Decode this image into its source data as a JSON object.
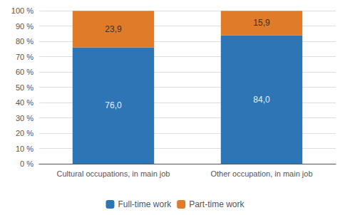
{
  "chart_data": {
    "type": "bar",
    "stacked": true,
    "categories": [
      "Cultural occupations, in main job",
      "Other occupation, in main job"
    ],
    "series": [
      {
        "name": "Full-time work",
        "color": "#2E75B6",
        "values": [
          76.0,
          84.0
        ],
        "value_labels": [
          "76,0",
          "84,0"
        ]
      },
      {
        "name": "Part-time work",
        "color": "#E07B2A",
        "values": [
          23.9,
          15.9
        ],
        "value_labels": [
          "23,9",
          "15,9"
        ]
      }
    ],
    "ylim": [
      0,
      100
    ],
    "yticks": [
      {
        "value": 0,
        "label": "0 %"
      },
      {
        "value": 10,
        "label": "10 %"
      },
      {
        "value": 20,
        "label": "20 %"
      },
      {
        "value": 30,
        "label": "30 %"
      },
      {
        "value": 40,
        "label": "40 %"
      },
      {
        "value": 50,
        "label": "50 %"
      },
      {
        "value": 60,
        "label": "60 %"
      },
      {
        "value": 70,
        "label": "70 %"
      },
      {
        "value": 80,
        "label": "80 %"
      },
      {
        "value": 90,
        "label": "90 %"
      },
      {
        "value": 100,
        "label": "100 %"
      }
    ],
    "grid": true,
    "legend": "bottom",
    "data_labels": true
  }
}
